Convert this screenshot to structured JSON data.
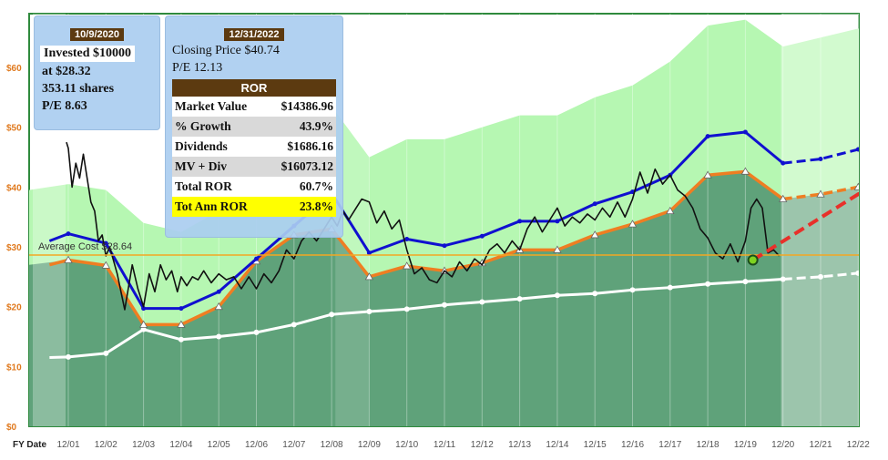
{
  "chart_data": {
    "type": "line",
    "xlabel": "FY Date",
    "x_ticks": [
      "12/01",
      "12/02",
      "12/03",
      "12/04",
      "12/05",
      "12/06",
      "12/07",
      "12/08",
      "12/09",
      "12/10",
      "12/11",
      "12/12",
      "12/13",
      "12/14",
      "12/15",
      "12/16",
      "12/17",
      "12/18",
      "12/19",
      "12/20",
      "12/21",
      "12/22"
    ],
    "y_ticks": [
      "$0",
      "$10",
      "$20",
      "$30",
      "$40",
      "$50",
      "$60"
    ],
    "ylim": [
      0,
      69
    ],
    "y_tick_values": [
      0,
      10,
      20,
      30,
      40,
      50,
      60
    ],
    "year_index": [
      0,
      1,
      2,
      3,
      4,
      5,
      6,
      7,
      8,
      9,
      10,
      11,
      12,
      13,
      14,
      15,
      16,
      17,
      18,
      19,
      20,
      21
    ],
    "high_band": [
      39.5,
      40.5,
      39.5,
      34.0,
      32.5,
      36.0,
      44.0,
      52.0,
      53.5,
      45.0,
      48.0,
      48.0,
      50.0,
      52.0,
      52.0,
      55.0,
      57.0,
      61.0,
      67.0,
      68.0,
      63.5,
      65.0,
      66.5
    ],
    "band_x": [
      -0.5,
      0,
      1,
      2,
      3,
      4,
      5,
      6,
      7,
      8,
      9,
      10,
      11,
      12,
      13,
      14,
      15,
      16,
      17,
      18,
      19,
      20,
      21
    ],
    "blue_line": [
      31.0,
      32.2,
      30.6,
      19.7,
      19.7,
      22.5,
      28.0,
      33.5,
      39.0,
      29.0,
      31.3,
      30.2,
      31.8,
      34.3,
      34.3,
      37.2,
      39.2,
      42.0,
      48.5,
      49.2,
      44.0,
      44.7,
      46.3
    ],
    "orange_line": [
      27.0,
      27.8,
      26.9,
      17.0,
      17.0,
      20.0,
      27.6,
      32.0,
      33.0,
      25.0,
      26.8,
      26.0,
      27.3,
      29.5,
      29.5,
      32.0,
      33.8,
      36.0,
      42.0,
      42.6,
      38.0,
      38.8,
      40.0
    ],
    "white_line": [
      11.5,
      11.6,
      12.2,
      16.2,
      14.5,
      15.0,
      15.7,
      17.0,
      18.7,
      19.2,
      19.6,
      20.3,
      20.8,
      21.3,
      21.9,
      22.2,
      22.8,
      23.2,
      23.8,
      24.2,
      24.6,
      25.0,
      25.6
    ],
    "projection_start": 19,
    "price_x": [
      -0.05,
      0.0,
      0.1,
      0.2,
      0.3,
      0.4,
      0.5,
      0.6,
      0.7,
      0.8,
      0.9,
      1.0,
      1.1,
      1.3,
      1.5,
      1.7,
      1.85,
      2.0,
      2.15,
      2.3,
      2.45,
      2.6,
      2.75,
      2.9,
      3.0,
      3.15,
      3.3,
      3.45,
      3.6,
      3.8,
      4.0,
      4.2,
      4.4,
      4.6,
      4.8,
      5.0,
      5.2,
      5.4,
      5.6,
      5.8,
      6.0,
      6.2,
      6.4,
      6.6,
      6.8,
      7.0,
      7.15,
      7.3,
      7.45,
      7.6,
      7.8,
      8.0,
      8.2,
      8.4,
      8.6,
      8.8,
      9.0,
      9.2,
      9.4,
      9.6,
      9.8,
      10.0,
      10.2,
      10.4,
      10.6,
      10.8,
      11.0,
      11.2,
      11.4,
      11.6,
      11.8,
      12.0,
      12.2,
      12.4,
      12.6,
      12.8,
      13.0,
      13.2,
      13.4,
      13.6,
      13.8,
      14.0,
      14.2,
      14.4,
      14.6,
      14.8,
      15.0,
      15.2,
      15.4,
      15.6,
      15.8,
      16.0,
      16.2,
      16.4,
      16.6,
      16.8,
      17.0,
      17.2,
      17.4,
      17.6,
      17.8,
      18.0,
      18.15,
      18.3,
      18.45,
      18.6,
      18.75,
      18.9
    ],
    "price_y": [
      47.5,
      46.5,
      40.0,
      44.0,
      41.5,
      45.5,
      41.5,
      37.5,
      36.0,
      31.0,
      32.0,
      28.5,
      30.0,
      25.5,
      19.5,
      27.0,
      23.0,
      20.0,
      25.5,
      22.5,
      27.0,
      24.5,
      26.0,
      22.5,
      25.0,
      23.5,
      25.0,
      24.5,
      26.0,
      24.0,
      25.5,
      24.5,
      25.0,
      23.0,
      25.0,
      23.0,
      25.5,
      24.0,
      26.0,
      29.5,
      28.0,
      31.0,
      32.5,
      31.0,
      33.0,
      35.0,
      33.5,
      36.0,
      34.5,
      36.0,
      38.0,
      37.5,
      34.0,
      36.0,
      33.0,
      34.5,
      29.5,
      25.5,
      26.5,
      24.5,
      24.0,
      26.0,
      25.0,
      27.5,
      26.0,
      28.0,
      27.0,
      29.5,
      30.5,
      29.0,
      31.0,
      29.5,
      33.0,
      35.0,
      32.5,
      34.5,
      36.5,
      33.5,
      35.0,
      34.0,
      35.5,
      34.5,
      36.5,
      35.0,
      37.5,
      35.0,
      38.0,
      42.5,
      39.0,
      43.0,
      40.5,
      42.0,
      39.5,
      38.5,
      36.5,
      33.0,
      31.5,
      29.0,
      28.0,
      30.5,
      27.5,
      31.0,
      36.5,
      38.0,
      36.5,
      29.0,
      29.5,
      28.5
    ],
    "price_x_extra": [
      13.55,
      14.4,
      15.7,
      16.75,
      17.3,
      17.6,
      17.9,
      18.4,
      18.8,
      19.0
    ],
    "price_y_extra": [
      33.0,
      34.0,
      43.5,
      42.0,
      36.0,
      30.0,
      28.5,
      38.5,
      30.5,
      27.8
    ],
    "average_cost": 28.64,
    "average_cost_label": "Average Cost $28.64",
    "final_point": 27.8,
    "projection_target": 40.0,
    "colors": {
      "high_band": "#b6f7b2",
      "orange_area": "#5fa27a",
      "blue": "#1010d0",
      "orange": "#ef7e22",
      "white_line": "#ffffff",
      "price": "#111111",
      "projection": "#e8302a",
      "avg_line": "#f3a722",
      "frame": "#2f8a3d"
    }
  },
  "box1": {
    "date": "10/9/2020",
    "invested": "Invested $10000",
    "price": "at $28.32",
    "shares": "353.11 shares",
    "pe": "P/E 8.63"
  },
  "box2": {
    "date": "12/31/2022",
    "closing": "Closing Price $40.74",
    "pe": "P/E 12.13",
    "ror_title": "ROR",
    "rows": [
      {
        "label": "Market Value",
        "value": "$14386.96"
      },
      {
        "label": "% Growth",
        "value": "43.9%"
      },
      {
        "label": "Dividends",
        "value": "$1686.16"
      },
      {
        "label": "MV + Div",
        "value": "$16073.12"
      },
      {
        "label": "Total ROR",
        "value": "60.7%"
      },
      {
        "label": "Tot Ann ROR",
        "value": "23.8%"
      }
    ]
  }
}
